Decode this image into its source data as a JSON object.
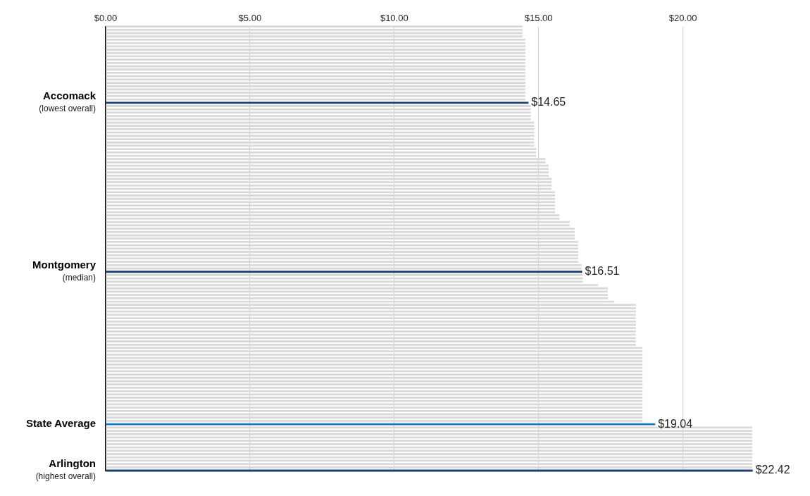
{
  "chart_data": {
    "type": "bar",
    "orientation": "horizontal",
    "categories": [
      null,
      null,
      null,
      null,
      null,
      null,
      null,
      null,
      null,
      null,
      null,
      null,
      null,
      null,
      null,
      null,
      null,
      null,
      null,
      null,
      null,
      null,
      null,
      "Accomack\n(lowest overall)",
      null,
      null,
      null,
      null,
      null,
      null,
      null,
      null,
      null,
      null,
      null,
      null,
      null,
      null,
      null,
      null,
      null,
      null,
      null,
      null,
      null,
      null,
      null,
      null,
      null,
      null,
      null,
      null,
      null,
      null,
      null,
      null,
      null,
      null,
      null,
      null,
      null,
      null,
      null,
      null,
      null,
      null,
      null,
      null,
      null,
      null,
      null,
      null,
      null,
      null,
      "Montgomery\n(median)",
      null,
      null,
      null,
      null,
      null,
      null,
      null,
      null,
      null,
      null,
      null,
      null,
      null,
      null,
      null,
      null,
      null,
      null,
      null,
      null,
      null,
      null,
      null,
      null,
      null,
      null,
      null,
      null,
      null,
      null,
      null,
      null,
      null,
      null,
      null,
      null,
      null,
      null,
      null,
      null,
      null,
      null,
      null,
      null,
      null,
      "State Average",
      null,
      null,
      null,
      null,
      null,
      null,
      null,
      null,
      null,
      null,
      null,
      null,
      null,
      "Arlington\n(highest overall)"
    ],
    "values": [
      14.44,
      14.44,
      14.44,
      14.44,
      14.54,
      14.54,
      14.54,
      14.54,
      14.54,
      14.54,
      14.54,
      14.54,
      14.54,
      14.54,
      14.54,
      14.54,
      14.54,
      14.54,
      14.54,
      14.54,
      14.54,
      14.54,
      14.54,
      14.65,
      14.73,
      14.73,
      14.73,
      14.73,
      14.73,
      14.85,
      14.85,
      14.85,
      14.85,
      14.85,
      14.85,
      14.85,
      14.85,
      14.92,
      14.92,
      14.92,
      15.24,
      15.24,
      15.35,
      15.35,
      15.35,
      15.35,
      15.45,
      15.45,
      15.45,
      15.45,
      15.57,
      15.57,
      15.57,
      15.57,
      15.57,
      15.57,
      15.57,
      15.72,
      15.72,
      16.08,
      16.08,
      16.25,
      16.25,
      16.25,
      16.25,
      16.37,
      16.37,
      16.37,
      16.37,
      16.37,
      16.37,
      16.37,
      16.49,
      16.49,
      16.51,
      16.53,
      16.53,
      16.53,
      17.06,
      17.4,
      17.4,
      17.4,
      17.4,
      17.62,
      18.37,
      18.37,
      18.37,
      18.37,
      18.37,
      18.37,
      18.37,
      18.37,
      18.37,
      18.37,
      18.37,
      18.37,
      18.37,
      18.6,
      18.6,
      18.6,
      18.6,
      18.6,
      18.6,
      18.6,
      18.6,
      18.6,
      18.6,
      18.6,
      18.6,
      18.6,
      18.6,
      18.6,
      18.6,
      18.6,
      18.6,
      18.6,
      18.6,
      18.6,
      18.6,
      18.6,
      19.04,
      22.4,
      22.4,
      22.4,
      22.4,
      22.4,
      22.4,
      22.4,
      22.4,
      22.4,
      22.4,
      22.4,
      22.4,
      22.4,
      22.42
    ],
    "colors": [
      "#d9d9d9",
      "#d9d9d9",
      "#d9d9d9",
      "#d9d9d9",
      "#d9d9d9",
      "#d9d9d9",
      "#d9d9d9",
      "#d9d9d9",
      "#d9d9d9",
      "#d9d9d9",
      "#d9d9d9",
      "#d9d9d9",
      "#d9d9d9",
      "#d9d9d9",
      "#d9d9d9",
      "#d9d9d9",
      "#d9d9d9",
      "#d9d9d9",
      "#d9d9d9",
      "#d9d9d9",
      "#d9d9d9",
      "#d9d9d9",
      "#d9d9d9",
      "#1f3f6e",
      "#d9d9d9",
      "#d9d9d9",
      "#d9d9d9",
      "#d9d9d9",
      "#d9d9d9",
      "#d9d9d9",
      "#d9d9d9",
      "#d9d9d9",
      "#d9d9d9",
      "#d9d9d9",
      "#d9d9d9",
      "#d9d9d9",
      "#d9d9d9",
      "#d9d9d9",
      "#d9d9d9",
      "#d9d9d9",
      "#d9d9d9",
      "#d9d9d9",
      "#d9d9d9",
      "#d9d9d9",
      "#d9d9d9",
      "#d9d9d9",
      "#d9d9d9",
      "#d9d9d9",
      "#d9d9d9",
      "#d9d9d9",
      "#d9d9d9",
      "#d9d9d9",
      "#d9d9d9",
      "#d9d9d9",
      "#d9d9d9",
      "#d9d9d9",
      "#d9d9d9",
      "#d9d9d9",
      "#d9d9d9",
      "#d9d9d9",
      "#d9d9d9",
      "#d9d9d9",
      "#d9d9d9",
      "#d9d9d9",
      "#d9d9d9",
      "#d9d9d9",
      "#d9d9d9",
      "#d9d9d9",
      "#d9d9d9",
      "#d9d9d9",
      "#d9d9d9",
      "#d9d9d9",
      "#d9d9d9",
      "#d9d9d9",
      "#1f3f6e",
      "#d9d9d9",
      "#d9d9d9",
      "#d9d9d9",
      "#d9d9d9",
      "#d9d9d9",
      "#d9d9d9",
      "#d9d9d9",
      "#d9d9d9",
      "#d9d9d9",
      "#d9d9d9",
      "#d9d9d9",
      "#d9d9d9",
      "#d9d9d9",
      "#d9d9d9",
      "#d9d9d9",
      "#d9d9d9",
      "#d9d9d9",
      "#d9d9d9",
      "#d9d9d9",
      "#d9d9d9",
      "#d9d9d9",
      "#d9d9d9",
      "#d9d9d9",
      "#d9d9d9",
      "#d9d9d9",
      "#d9d9d9",
      "#d9d9d9",
      "#d9d9d9",
      "#d9d9d9",
      "#d9d9d9",
      "#d9d9d9",
      "#d9d9d9",
      "#d9d9d9",
      "#d9d9d9",
      "#d9d9d9",
      "#d9d9d9",
      "#d9d9d9",
      "#d9d9d9",
      "#d9d9d9",
      "#d9d9d9",
      "#d9d9d9",
      "#d9d9d9",
      "#d9d9d9",
      "#d9d9d9",
      "#d9d9d9",
      "#1a7ac4",
      "#d9d9d9",
      "#d9d9d9",
      "#d9d9d9",
      "#d9d9d9",
      "#d9d9d9",
      "#d9d9d9",
      "#d9d9d9",
      "#d9d9d9",
      "#d9d9d9",
      "#d9d9d9",
      "#d9d9d9",
      "#d9d9d9",
      "#d9d9d9",
      "#1f3f6e"
    ],
    "value_labels": [
      null,
      null,
      null,
      null,
      null,
      null,
      null,
      null,
      null,
      null,
      null,
      null,
      null,
      null,
      null,
      null,
      null,
      null,
      null,
      null,
      null,
      null,
      null,
      "$14.65",
      null,
      null,
      null,
      null,
      null,
      null,
      null,
      null,
      null,
      null,
      null,
      null,
      null,
      null,
      null,
      null,
      null,
      null,
      null,
      null,
      null,
      null,
      null,
      null,
      null,
      null,
      null,
      null,
      null,
      null,
      null,
      null,
      null,
      null,
      null,
      null,
      null,
      null,
      null,
      null,
      null,
      null,
      null,
      null,
      null,
      null,
      null,
      null,
      null,
      null,
      "$16.51",
      null,
      null,
      null,
      null,
      null,
      null,
      null,
      null,
      null,
      null,
      null,
      null,
      null,
      null,
      null,
      null,
      null,
      null,
      null,
      null,
      null,
      null,
      null,
      null,
      null,
      null,
      null,
      null,
      null,
      null,
      null,
      null,
      null,
      null,
      null,
      null,
      null,
      null,
      null,
      null,
      null,
      null,
      null,
      null,
      null,
      "$19.04",
      null,
      null,
      null,
      null,
      null,
      null,
      null,
      null,
      null,
      null,
      null,
      null,
      null,
      "$22.42"
    ],
    "xlim": [
      0,
      22.5
    ],
    "xticks": [
      {
        "value": 0,
        "label": "$0.00"
      },
      {
        "value": 5,
        "label": "$5.00"
      },
      {
        "value": 10,
        "label": "$10.00"
      },
      {
        "value": 15,
        "label": "$15.00"
      },
      {
        "value": 20,
        "label": "$20.00"
      }
    ],
    "grid": "x",
    "legend": false
  }
}
